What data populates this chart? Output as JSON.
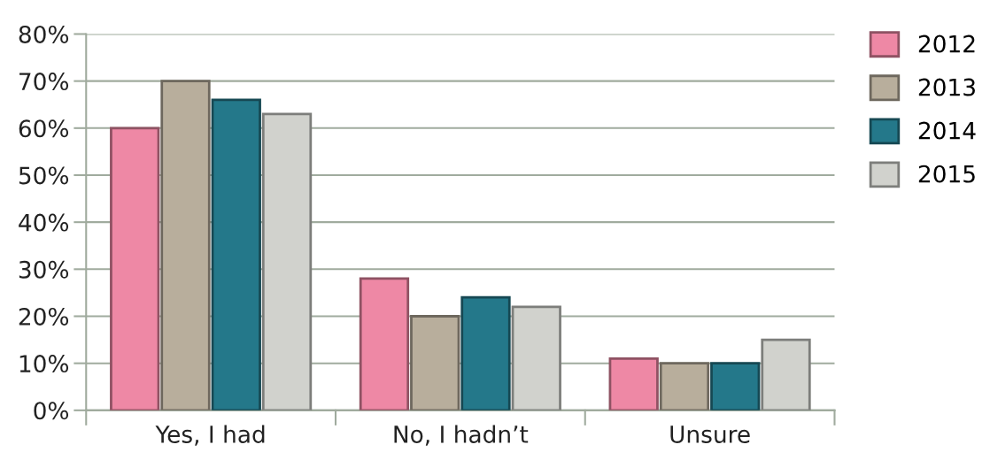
{
  "chart_data": {
    "type": "bar",
    "categories": [
      "Yes, I had",
      "No, I hadn’t",
      "Unsure"
    ],
    "series": [
      {
        "name": "2012",
        "color": "#ee88a5",
        "values": [
          60,
          28,
          11
        ]
      },
      {
        "name": "2013",
        "color": "#b8ae9c",
        "values": [
          70,
          20,
          10
        ]
      },
      {
        "name": "2014",
        "color": "#24788a",
        "values": [
          66,
          24,
          10
        ]
      },
      {
        "name": "2015",
        "color": "#d1d2cd",
        "values": [
          63,
          22,
          15
        ]
      }
    ],
    "ylim": [
      0,
      80
    ],
    "yticks": [
      {
        "value": 0,
        "label": "0%"
      },
      {
        "value": 10,
        "label": "10%"
      },
      {
        "value": 20,
        "label": "20%"
      },
      {
        "value": 30,
        "label": "30%"
      },
      {
        "value": 40,
        "label": "40%"
      },
      {
        "value": 50,
        "label": "50%"
      },
      {
        "value": 60,
        "label": "60%"
      },
      {
        "value": 70,
        "label": "70%"
      },
      {
        "value": 80,
        "label": "80%"
      }
    ],
    "grid": "y",
    "legend": "right"
  }
}
